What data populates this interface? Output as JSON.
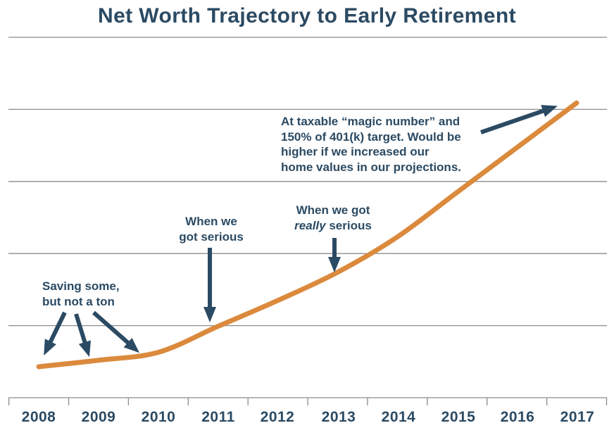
{
  "title": "Net Worth Trajectory to Early Retirement",
  "colors": {
    "navy": "#2B4A63",
    "orange": "#DB8A3D",
    "gridline": "#8C8C8C",
    "background": "#FFFFFF"
  },
  "annotations": {
    "saving": {
      "line1": "Saving some,",
      "line2": "but not a ton"
    },
    "serious": {
      "line1": "When we",
      "line2": "got serious"
    },
    "really": {
      "line1": "When we got",
      "italic_word": "really",
      "line2_rest": "serious"
    },
    "magic": {
      "line1": "At taxable “magic number” and",
      "line2": "150% of 401(k) target. Would be",
      "line3": "higher if we increased our",
      "line4": "home values in our projections."
    }
  },
  "chart_data": {
    "type": "line",
    "title": "Net Worth Trajectory to Early Retirement",
    "categories": [
      "2008",
      "2009",
      "2010",
      "2011",
      "2012",
      "2013",
      "2014",
      "2015",
      "2016",
      "2017"
    ],
    "series": [
      {
        "name": "Net worth",
        "color": "#DB8A3D",
        "values": [
          0.43,
          0.52,
          0.63,
          0.99,
          1.35,
          1.74,
          2.23,
          2.85,
          3.47,
          4.09
        ]
      }
    ],
    "xlabel": "",
    "ylabel": "",
    "ylim": [
      0,
      5
    ],
    "y_axis_labels_shown": false,
    "grid": "5 unlabeled horizontal gridlines plus bottom axis with ticks",
    "legend": "none",
    "annotations": [
      {
        "text": "Saving some, but not a ton",
        "points_to": [
          "2008",
          "2009",
          "2010"
        ]
      },
      {
        "text": "When we got serious",
        "points_to": [
          "2011"
        ]
      },
      {
        "text": "When we got really serious",
        "points_to": [
          "2013"
        ]
      },
      {
        "text": "At taxable “magic number” and 150% of 401(k) target. Would be higher if we increased our home values in our projections.",
        "points_to": [
          "2017"
        ]
      }
    ]
  }
}
